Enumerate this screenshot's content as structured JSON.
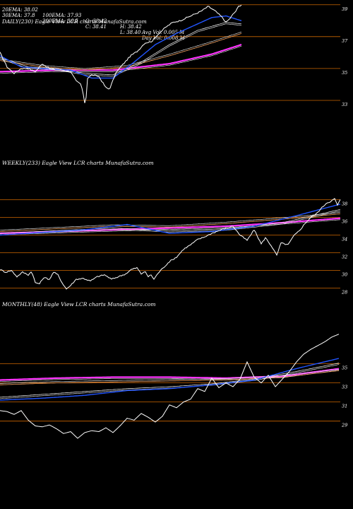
{
  "header": {
    "row1": [
      "20EMA: 38.02",
      "100EMA: 37.93",
      "O: 38.42",
      "H: 38.42",
      "Avg Vol: 0.005 M"
    ],
    "row2": [
      "30EMA: 37.8",
      "200EMA: 36.5",
      "C: 38.41",
      "L: 38.40",
      "Day Vol: 0.008 M"
    ]
  },
  "colors": {
    "price": "#ffffff",
    "ema_short": "#2255ff",
    "ema_long": "#ff33ff",
    "ema_mid": "#ffffff",
    "ema_alt": "#ffaa66",
    "gridline": "#cc6600",
    "background": "#000000"
  },
  "chart_data": [
    {
      "type": "line",
      "title": "DAILY(230) Eagle  View  LCR charts MunafaSutra.com",
      "ylim": [
        32.2,
        39.3
      ],
      "yticks": [
        39,
        37,
        35,
        33
      ],
      "grid": true,
      "x_count": 230,
      "price_anchors": [
        [
          0,
          36.0
        ],
        [
          10,
          35.1
        ],
        [
          20,
          34.7
        ],
        [
          30,
          35.0
        ],
        [
          40,
          35.0
        ],
        [
          50,
          34.8
        ],
        [
          60,
          35.3
        ],
        [
          70,
          35.0
        ],
        [
          80,
          34.9
        ],
        [
          90,
          34.9
        ],
        [
          100,
          34.8
        ],
        [
          108,
          34.2
        ],
        [
          115,
          34.0
        ],
        [
          119,
          33.1
        ],
        [
          121,
          32.6
        ],
        [
          124,
          34.4
        ],
        [
          130,
          34.6
        ],
        [
          140,
          34.5
        ],
        [
          150,
          33.8
        ],
        [
          155,
          33.7
        ],
        [
          165,
          34.8
        ],
        [
          175,
          35.3
        ],
        [
          185,
          35.8
        ],
        [
          195,
          36.1
        ],
        [
          205,
          36.6
        ],
        [
          215,
          36.7
        ],
        [
          225,
          37.2
        ],
        [
          235,
          37.6
        ],
        [
          245,
          37.9
        ],
        [
          255,
          38.0
        ],
        [
          265,
          38.2
        ],
        [
          275,
          38.4
        ],
        [
          285,
          38.6
        ],
        [
          295,
          38.9
        ],
        [
          305,
          38.6
        ],
        [
          315,
          38.2
        ],
        [
          320,
          37.9
        ],
        [
          325,
          38.1
        ],
        [
          330,
          38.4
        ],
        [
          334,
          38.6
        ],
        [
          338,
          38.9
        ],
        [
          342,
          39.0
        ]
      ],
      "ema_anchors": {
        "ema20": [
          [
            0,
            35.8
          ],
          [
            30,
            35.1
          ],
          [
            60,
            35.0
          ],
          [
            100,
            34.9
          ],
          [
            130,
            34.4
          ],
          [
            160,
            34.4
          ],
          [
            190,
            35.4
          ],
          [
            220,
            36.5
          ],
          [
            250,
            37.2
          ],
          [
            280,
            37.8
          ],
          [
            300,
            38.2
          ],
          [
            320,
            38.3
          ],
          [
            342,
            38.0
          ]
        ],
        "ema30": [
          [
            0,
            35.7
          ],
          [
            40,
            35.1
          ],
          [
            80,
            35.0
          ],
          [
            120,
            34.7
          ],
          [
            160,
            34.6
          ],
          [
            200,
            35.4
          ],
          [
            240,
            36.5
          ],
          [
            280,
            37.4
          ],
          [
            320,
            37.9
          ],
          [
            342,
            37.8
          ]
        ],
        "ema100": [
          [
            0,
            35.5
          ],
          [
            60,
            35.1
          ],
          [
            120,
            34.9
          ],
          [
            180,
            35.1
          ],
          [
            240,
            35.8
          ],
          [
            300,
            36.6
          ],
          [
            342,
            37.2
          ]
        ],
        "ema200": [
          [
            0,
            34.8
          ],
          [
            80,
            34.9
          ],
          [
            160,
            34.9
          ],
          [
            240,
            35.3
          ],
          [
            300,
            35.9
          ],
          [
            342,
            36.5
          ]
        ]
      }
    },
    {
      "type": "line",
      "title": "WEEKLY(233) Eagle  View  LCR charts MunafaSutra.com",
      "ylim": [
        27.0,
        39.0
      ],
      "yticks": [
        38,
        36,
        34,
        32,
        30,
        28
      ],
      "grid": true,
      "x_count": 233,
      "price_anchors": [
        [
          0,
          30.1
        ],
        [
          8,
          29.8
        ],
        [
          16,
          30.0
        ],
        [
          24,
          29.3
        ],
        [
          32,
          29.8
        ],
        [
          40,
          29.5
        ],
        [
          45,
          29.9
        ],
        [
          50,
          28.6
        ],
        [
          56,
          28.5
        ],
        [
          62,
          29.2
        ],
        [
          70,
          29.0
        ],
        [
          76,
          29.8
        ],
        [
          82,
          29.5
        ],
        [
          88,
          28.6
        ],
        [
          94,
          27.9
        ],
        [
          100,
          28.3
        ],
        [
          108,
          29.0
        ],
        [
          118,
          29.1
        ],
        [
          128,
          28.8
        ],
        [
          138,
          29.3
        ],
        [
          148,
          29.5
        ],
        [
          158,
          29.0
        ],
        [
          168,
          29.3
        ],
        [
          178,
          29.6
        ],
        [
          186,
          30.1
        ],
        [
          194,
          30.3
        ],
        [
          200,
          29.6
        ],
        [
          205,
          29.9
        ],
        [
          210,
          29.3
        ],
        [
          214,
          29.5
        ],
        [
          218,
          29.0
        ],
        [
          224,
          29.7
        ],
        [
          230,
          30.2
        ],
        [
          240,
          31.0
        ],
        [
          250,
          31.5
        ],
        [
          260,
          32.4
        ],
        [
          270,
          32.9
        ],
        [
          280,
          33.5
        ],
        [
          290,
          33.8
        ],
        [
          300,
          34.2
        ],
        [
          310,
          34.5
        ],
        [
          320,
          34.8
        ],
        [
          330,
          35.0
        ],
        [
          340,
          34.0
        ],
        [
          350,
          33.4
        ],
        [
          360,
          34.6
        ],
        [
          370,
          33.0
        ],
        [
          376,
          33.7
        ],
        [
          385,
          32.7
        ],
        [
          392,
          31.7
        ],
        [
          398,
          33.1
        ],
        [
          408,
          32.9
        ],
        [
          416,
          33.9
        ],
        [
          424,
          34.5
        ],
        [
          432,
          35.3
        ],
        [
          440,
          36.0
        ],
        [
          448,
          36.4
        ],
        [
          456,
          37.1
        ],
        [
          462,
          37.6
        ],
        [
          468,
          37.8
        ],
        [
          474,
          38.1
        ],
        [
          478,
          37.4
        ],
        [
          482,
          38.0
        ]
      ],
      "ema_anchors": {
        "ema20": [
          [
            0,
            34.0
          ],
          [
            60,
            34.3
          ],
          [
            120,
            34.6
          ],
          [
            180,
            35.2
          ],
          [
            240,
            34.2
          ],
          [
            300,
            34.4
          ],
          [
            360,
            35.0
          ],
          [
            420,
            36.2
          ],
          [
            482,
            37.5
          ]
        ],
        "ema30": [
          [
            0,
            34.2
          ],
          [
            80,
            34.5
          ],
          [
            160,
            34.8
          ],
          [
            240,
            34.5
          ],
          [
            320,
            34.7
          ],
          [
            400,
            35.4
          ],
          [
            482,
            36.9
          ]
        ],
        "ema100": [
          [
            0,
            34.4
          ],
          [
            80,
            34.7
          ],
          [
            160,
            35.0
          ],
          [
            240,
            34.9
          ],
          [
            320,
            35.3
          ],
          [
            400,
            35.8
          ],
          [
            482,
            36.4
          ]
        ],
        "ema200": [
          [
            0,
            34.2
          ],
          [
            80,
            34.4
          ],
          [
            160,
            34.6
          ],
          [
            240,
            34.8
          ],
          [
            320,
            35.0
          ],
          [
            400,
            35.4
          ],
          [
            482,
            35.9
          ]
        ]
      }
    },
    {
      "type": "line",
      "title": "MONTHLY(48) Eagle  View  LCR charts MunafaSutra.com",
      "ylim": [
        27.2,
        38.3
      ],
      "yticks": [
        35,
        33,
        31,
        29
      ],
      "grid": true,
      "x_count": 48,
      "price_anchors": [
        [
          0,
          30.1
        ],
        [
          10,
          30.0
        ],
        [
          20,
          29.7
        ],
        [
          30,
          30.1
        ],
        [
          40,
          29.1
        ],
        [
          50,
          28.5
        ],
        [
          60,
          28.4
        ],
        [
          70,
          28.6
        ],
        [
          80,
          28.2
        ],
        [
          90,
          27.7
        ],
        [
          100,
          27.9
        ],
        [
          110,
          27.2
        ],
        [
          120,
          27.8
        ],
        [
          130,
          28.0
        ],
        [
          140,
          27.9
        ],
        [
          150,
          28.3
        ],
        [
          160,
          27.8
        ],
        [
          170,
          28.5
        ],
        [
          180,
          29.3
        ],
        [
          190,
          29.1
        ],
        [
          200,
          29.8
        ],
        [
          210,
          29.4
        ],
        [
          220,
          28.9
        ],
        [
          230,
          29.5
        ],
        [
          240,
          30.7
        ],
        [
          250,
          30.4
        ],
        [
          260,
          31.0
        ],
        [
          270,
          31.3
        ],
        [
          280,
          32.4
        ],
        [
          290,
          32.1
        ],
        [
          300,
          33.5
        ],
        [
          310,
          32.5
        ],
        [
          320,
          33.0
        ],
        [
          330,
          32.6
        ],
        [
          340,
          33.4
        ],
        [
          350,
          35.2
        ],
        [
          360,
          33.6
        ],
        [
          370,
          33.0
        ],
        [
          380,
          33.8
        ],
        [
          390,
          32.6
        ],
        [
          400,
          33.4
        ],
        [
          410,
          34.2
        ],
        [
          420,
          35.2
        ],
        [
          430,
          36.0
        ],
        [
          440,
          36.5
        ],
        [
          450,
          36.9
        ],
        [
          460,
          37.3
        ],
        [
          470,
          37.8
        ],
        [
          480,
          38.1
        ]
      ],
      "ema_anchors": {
        "ema20": [
          [
            0,
            31.2
          ],
          [
            60,
            31.4
          ],
          [
            120,
            31.7
          ],
          [
            180,
            32.2
          ],
          [
            240,
            32.4
          ],
          [
            300,
            32.8
          ],
          [
            360,
            33.3
          ],
          [
            420,
            34.5
          ],
          [
            482,
            35.6
          ]
        ],
        "ema30": [
          [
            0,
            31.5
          ],
          [
            60,
            31.8
          ],
          [
            120,
            32.1
          ],
          [
            180,
            32.4
          ],
          [
            240,
            32.6
          ],
          [
            300,
            32.9
          ],
          [
            360,
            33.4
          ],
          [
            420,
            34.2
          ],
          [
            482,
            35.1
          ]
        ],
        "ema100": [
          [
            0,
            32.8
          ],
          [
            80,
            33.0
          ],
          [
            160,
            33.1
          ],
          [
            240,
            33.2
          ],
          [
            320,
            33.3
          ],
          [
            400,
            33.6
          ],
          [
            482,
            34.3
          ]
        ],
        "ema200": [
          [
            0,
            33.3
          ],
          [
            80,
            33.5
          ],
          [
            160,
            33.6
          ],
          [
            240,
            33.6
          ],
          [
            320,
            33.5
          ],
          [
            400,
            33.7
          ],
          [
            482,
            34.5
          ]
        ]
      }
    }
  ]
}
